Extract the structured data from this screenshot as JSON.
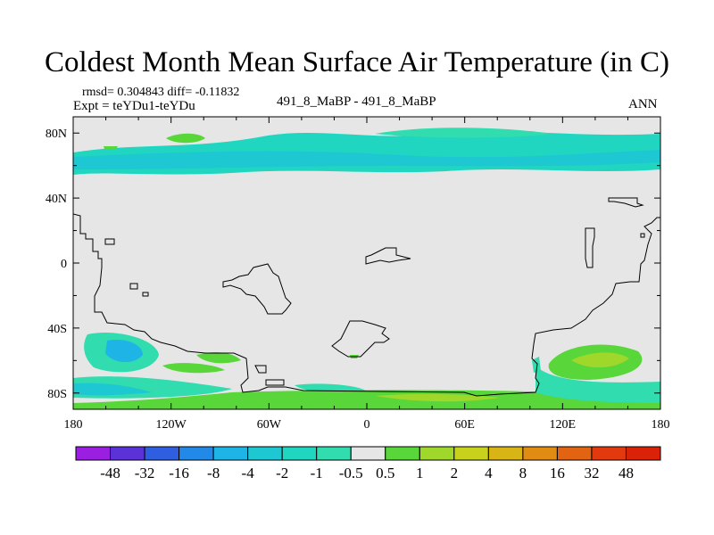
{
  "title": "Coldest Month Mean Surface Air Temperature (in C)",
  "stats": "rmsd= 0.304843 diff= -0.11832",
  "experiment": "Expt = teYDu1-teYDu",
  "case": "491_8_MaBP - 491_8_MaBP",
  "season": "ANN",
  "map": {
    "projection": "cylindrical equidistant",
    "lon_range": [
      -180,
      180
    ],
    "lat_range": [
      -90,
      90
    ],
    "x_ticks": [
      {
        "value": -180,
        "label": "180"
      },
      {
        "value": -120,
        "label": "120W"
      },
      {
        "value": -60,
        "label": "60W"
      },
      {
        "value": 0,
        "label": "0"
      },
      {
        "value": 60,
        "label": "60E"
      },
      {
        "value": 120,
        "label": "120E"
      },
      {
        "value": 180,
        "label": "180"
      }
    ],
    "y_ticks": [
      {
        "value": 80,
        "label": "80N"
      },
      {
        "value": 40,
        "label": "40N"
      },
      {
        "value": 0,
        "label": "0"
      },
      {
        "value": -40,
        "label": "40S"
      },
      {
        "value": -80,
        "label": "80S"
      }
    ],
    "background_color": "#e6e6e6"
  },
  "colorbar": {
    "levels": [
      "-48",
      "-32",
      "-16",
      "-8",
      "-4",
      "-2",
      "-1",
      "-0.5",
      "0.5",
      "1",
      "2",
      "4",
      "8",
      "16",
      "32",
      "48"
    ],
    "colors": [
      "#9b1fe0",
      "#5a32d8",
      "#2f5ee0",
      "#2389e8",
      "#1fb4e6",
      "#1dc8d2",
      "#20d6c0",
      "#31dcae",
      "#e6e6e6",
      "#58d63a",
      "#9fd82a",
      "#c8d21c",
      "#d8b414",
      "#e08c12",
      "#e26412",
      "#e23a0e",
      "#da2208"
    ]
  }
}
